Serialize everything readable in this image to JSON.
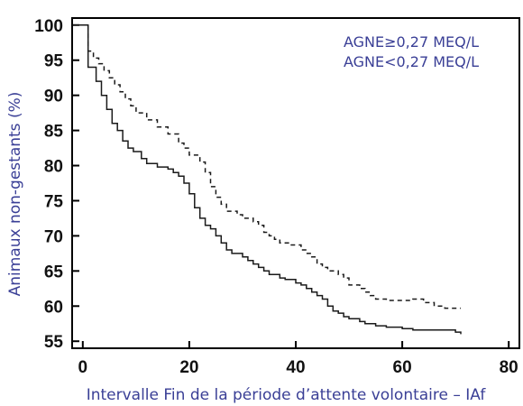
{
  "chart_data": {
    "type": "line",
    "title": "",
    "xlabel": "Intervalle Fin de la période d’attente volontaire – IAf",
    "ylabel": "Animaux non-gestants (%)",
    "xlim": [
      -2,
      82
    ],
    "ylim": [
      54,
      101
    ],
    "xticks": [
      "0",
      "20",
      "40",
      "60",
      "80"
    ],
    "yticks": [
      "100",
      "95",
      "90",
      "85",
      "80",
      "75",
      "70",
      "65",
      "60",
      "55"
    ],
    "grid": false,
    "legend": {
      "placement": "top-right",
      "entries": [
        "AGNE≥0,27 MEQ/L",
        "AGNE<0,27 MEQ/L"
      ]
    },
    "series": [
      {
        "style": "solid",
        "points": [
          [
            -2,
            100
          ],
          [
            1,
            100
          ],
          [
            1,
            94
          ],
          [
            2.5,
            94
          ],
          [
            2.5,
            92
          ],
          [
            3.5,
            92
          ],
          [
            3.5,
            90
          ],
          [
            4.5,
            90
          ],
          [
            4.5,
            88
          ],
          [
            5.5,
            88
          ],
          [
            5.5,
            86
          ],
          [
            6.5,
            86
          ],
          [
            6.5,
            85
          ],
          [
            7.5,
            85
          ],
          [
            7.5,
            83.5
          ],
          [
            8.5,
            83.5
          ],
          [
            8.5,
            82.5
          ],
          [
            9.5,
            82.5
          ],
          [
            9.5,
            82
          ],
          [
            11,
            82
          ],
          [
            11,
            81
          ],
          [
            12,
            81
          ],
          [
            12,
            80.3
          ],
          [
            14,
            80.3
          ],
          [
            14,
            79.8
          ],
          [
            16,
            79.8
          ],
          [
            16,
            79.5
          ],
          [
            17,
            79.5
          ],
          [
            17,
            79
          ],
          [
            18,
            79
          ],
          [
            18,
            78.5
          ],
          [
            19,
            78.5
          ],
          [
            19,
            77.5
          ],
          [
            20,
            77.5
          ],
          [
            20,
            76
          ],
          [
            21,
            76
          ],
          [
            21,
            74
          ],
          [
            22,
            74
          ],
          [
            22,
            72.5
          ],
          [
            23,
            72.5
          ],
          [
            23,
            71.5
          ],
          [
            24,
            71.5
          ],
          [
            24,
            71
          ],
          [
            25,
            71
          ],
          [
            25,
            70
          ],
          [
            26,
            70
          ],
          [
            26,
            69
          ],
          [
            27,
            69
          ],
          [
            27,
            68
          ],
          [
            28,
            68
          ],
          [
            28,
            67.5
          ],
          [
            30,
            67.5
          ],
          [
            30,
            67
          ],
          [
            31,
            67
          ],
          [
            31,
            66.5
          ],
          [
            32,
            66.5
          ],
          [
            32,
            66
          ],
          [
            33,
            66
          ],
          [
            33,
            65.5
          ],
          [
            34,
            65.5
          ],
          [
            34,
            65
          ],
          [
            35,
            65
          ],
          [
            35,
            64.5
          ],
          [
            37,
            64.5
          ],
          [
            37,
            64
          ],
          [
            38,
            64
          ],
          [
            38,
            63.8
          ],
          [
            40,
            63.8
          ],
          [
            40,
            63.3
          ],
          [
            41,
            63.3
          ],
          [
            41,
            63
          ],
          [
            42,
            63
          ],
          [
            42,
            62.5
          ],
          [
            43,
            62.5
          ],
          [
            43,
            62
          ],
          [
            44,
            62
          ],
          [
            44,
            61.5
          ],
          [
            45,
            61.5
          ],
          [
            45,
            61
          ],
          [
            46,
            61
          ],
          [
            46,
            60
          ],
          [
            47,
            60
          ],
          [
            47,
            59.3
          ],
          [
            48,
            59.3
          ],
          [
            48,
            59
          ],
          [
            49,
            59
          ],
          [
            49,
            58.5
          ],
          [
            50,
            58.5
          ],
          [
            50,
            58.2
          ],
          [
            52,
            58.2
          ],
          [
            52,
            57.8
          ],
          [
            53,
            57.8
          ],
          [
            53,
            57.5
          ],
          [
            55,
            57.5
          ],
          [
            55,
            57.2
          ],
          [
            57,
            57.2
          ],
          [
            57,
            57
          ],
          [
            60,
            57
          ],
          [
            60,
            56.8
          ],
          [
            62,
            56.8
          ],
          [
            62,
            56.6
          ],
          [
            70,
            56.6
          ],
          [
            70,
            56.3
          ],
          [
            71,
            56.3
          ],
          [
            71,
            56
          ]
        ]
      },
      {
        "style": "dashed",
        "points": [
          [
            -2,
            100
          ],
          [
            1,
            100
          ],
          [
            1,
            96.3
          ],
          [
            2,
            96.3
          ],
          [
            2,
            95.3
          ],
          [
            3,
            95.3
          ],
          [
            3,
            94.5
          ],
          [
            4,
            94.5
          ],
          [
            4,
            93.5
          ],
          [
            5,
            93.5
          ],
          [
            5,
            92.5
          ],
          [
            6,
            92.5
          ],
          [
            6,
            91.5
          ],
          [
            7,
            91.5
          ],
          [
            7,
            90.5
          ],
          [
            8,
            90.5
          ],
          [
            8,
            89.5
          ],
          [
            9,
            89.5
          ],
          [
            9,
            88.5
          ],
          [
            10,
            88.5
          ],
          [
            10,
            87.5
          ],
          [
            12,
            87.5
          ],
          [
            12,
            86.5
          ],
          [
            14,
            86.5
          ],
          [
            14,
            85.5
          ],
          [
            16,
            85.5
          ],
          [
            16,
            84.5
          ],
          [
            18,
            84.5
          ],
          [
            18,
            83.2
          ],
          [
            19,
            83.2
          ],
          [
            19,
            82.5
          ],
          [
            20,
            82.5
          ],
          [
            20,
            81.5
          ],
          [
            22,
            81.5
          ],
          [
            22,
            80.5
          ],
          [
            23,
            80.5
          ],
          [
            23,
            79
          ],
          [
            24,
            79
          ],
          [
            24,
            77
          ],
          [
            25,
            77
          ],
          [
            25,
            75.5
          ],
          [
            26,
            75.5
          ],
          [
            26,
            74.5
          ],
          [
            27,
            74.5
          ],
          [
            27,
            73.5
          ],
          [
            29,
            73.5
          ],
          [
            29,
            73
          ],
          [
            30,
            73
          ],
          [
            30,
            72.5
          ],
          [
            32,
            72.5
          ],
          [
            32,
            72
          ],
          [
            33,
            72
          ],
          [
            33,
            71.5
          ],
          [
            34,
            71.5
          ],
          [
            34,
            70.5
          ],
          [
            35,
            70.5
          ],
          [
            35,
            70
          ],
          [
            36,
            70
          ],
          [
            36,
            69.5
          ],
          [
            37,
            69.5
          ],
          [
            37,
            69
          ],
          [
            39,
            69
          ],
          [
            39,
            68.7
          ],
          [
            41,
            68.7
          ],
          [
            41,
            68
          ],
          [
            42,
            68
          ],
          [
            42,
            67.5
          ],
          [
            43,
            67.5
          ],
          [
            43,
            67
          ],
          [
            44,
            67
          ],
          [
            44,
            66
          ],
          [
            45,
            66
          ],
          [
            45,
            65.5
          ],
          [
            46,
            65.5
          ],
          [
            46,
            65
          ],
          [
            48,
            65
          ],
          [
            48,
            64.5
          ],
          [
            49,
            64.5
          ],
          [
            49,
            64
          ],
          [
            50,
            64
          ],
          [
            50,
            63
          ],
          [
            52,
            63
          ],
          [
            52,
            62.5
          ],
          [
            53,
            62.5
          ],
          [
            53,
            62
          ],
          [
            54,
            62
          ],
          [
            54,
            61.5
          ],
          [
            55,
            61.5
          ],
          [
            55,
            61
          ],
          [
            57,
            61
          ],
          [
            57,
            60.8
          ],
          [
            62,
            60.8
          ],
          [
            62,
            61
          ],
          [
            64,
            61
          ],
          [
            64,
            60.5
          ],
          [
            66,
            60.5
          ],
          [
            66,
            60
          ],
          [
            68,
            60
          ],
          [
            68,
            59.7
          ],
          [
            71,
            59.7
          ]
        ]
      }
    ]
  }
}
